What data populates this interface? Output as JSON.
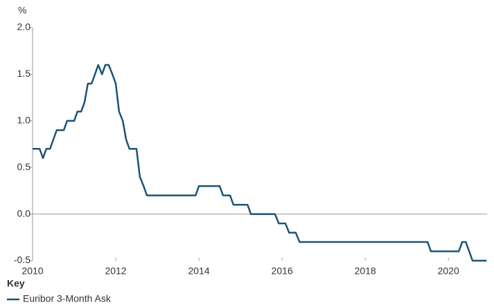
{
  "chart_data": {
    "type": "line",
    "y_axis_label": "%",
    "legend_title": "Key",
    "x": [
      2010,
      2010.17,
      2010.25,
      2010.33,
      2010.42,
      2010.5,
      2010.58,
      2010.75,
      2010.83,
      2011.0,
      2011.08,
      2011.17,
      2011.25,
      2011.33,
      2011.42,
      2011.5,
      2011.58,
      2011.67,
      2011.75,
      2011.83,
      2011.92,
      2012.0,
      2012.08,
      2012.17,
      2012.25,
      2012.33,
      2012.5,
      2012.58,
      2012.67,
      2012.75,
      2013.92,
      2014.0,
      2014.5,
      2014.58,
      2014.75,
      2014.83,
      2015.17,
      2015.25,
      2015.83,
      2015.92,
      2016.08,
      2016.17,
      2016.33,
      2016.42,
      2019.5,
      2019.58,
      2020.25,
      2020.33,
      2020.42,
      2020.5,
      2020.58,
      2020.92
    ],
    "series": [
      {
        "name": "Euribor 3-Month Ask",
        "color": "#1b5275",
        "values": [
          0.7,
          0.7,
          0.6,
          0.7,
          0.7,
          0.8,
          0.9,
          0.9,
          1.0,
          1.0,
          1.1,
          1.1,
          1.2,
          1.4,
          1.4,
          1.5,
          1.6,
          1.5,
          1.6,
          1.6,
          1.5,
          1.4,
          1.1,
          1.0,
          0.8,
          0.7,
          0.7,
          0.4,
          0.3,
          0.2,
          0.2,
          0.3,
          0.3,
          0.2,
          0.2,
          0.1,
          0.1,
          0.0,
          0.0,
          -0.1,
          -0.1,
          -0.2,
          -0.2,
          -0.3,
          -0.3,
          -0.4,
          -0.4,
          -0.3,
          -0.3,
          -0.4,
          -0.5,
          -0.5
        ]
      }
    ],
    "xlim": [
      2010,
      2020.93
    ],
    "xticks": [
      2010,
      2012,
      2014,
      2016,
      2018,
      2020
    ],
    "ylim": [
      -0.5,
      2.0
    ],
    "yticks": [
      -0.5,
      {
        "value": 0,
        "label": "0.0"
      },
      0.5,
      {
        "value": 1,
        "label": "1.0"
      },
      1.5,
      {
        "value": 2,
        "label": "2.0"
      }
    ],
    "grid": false
  }
}
